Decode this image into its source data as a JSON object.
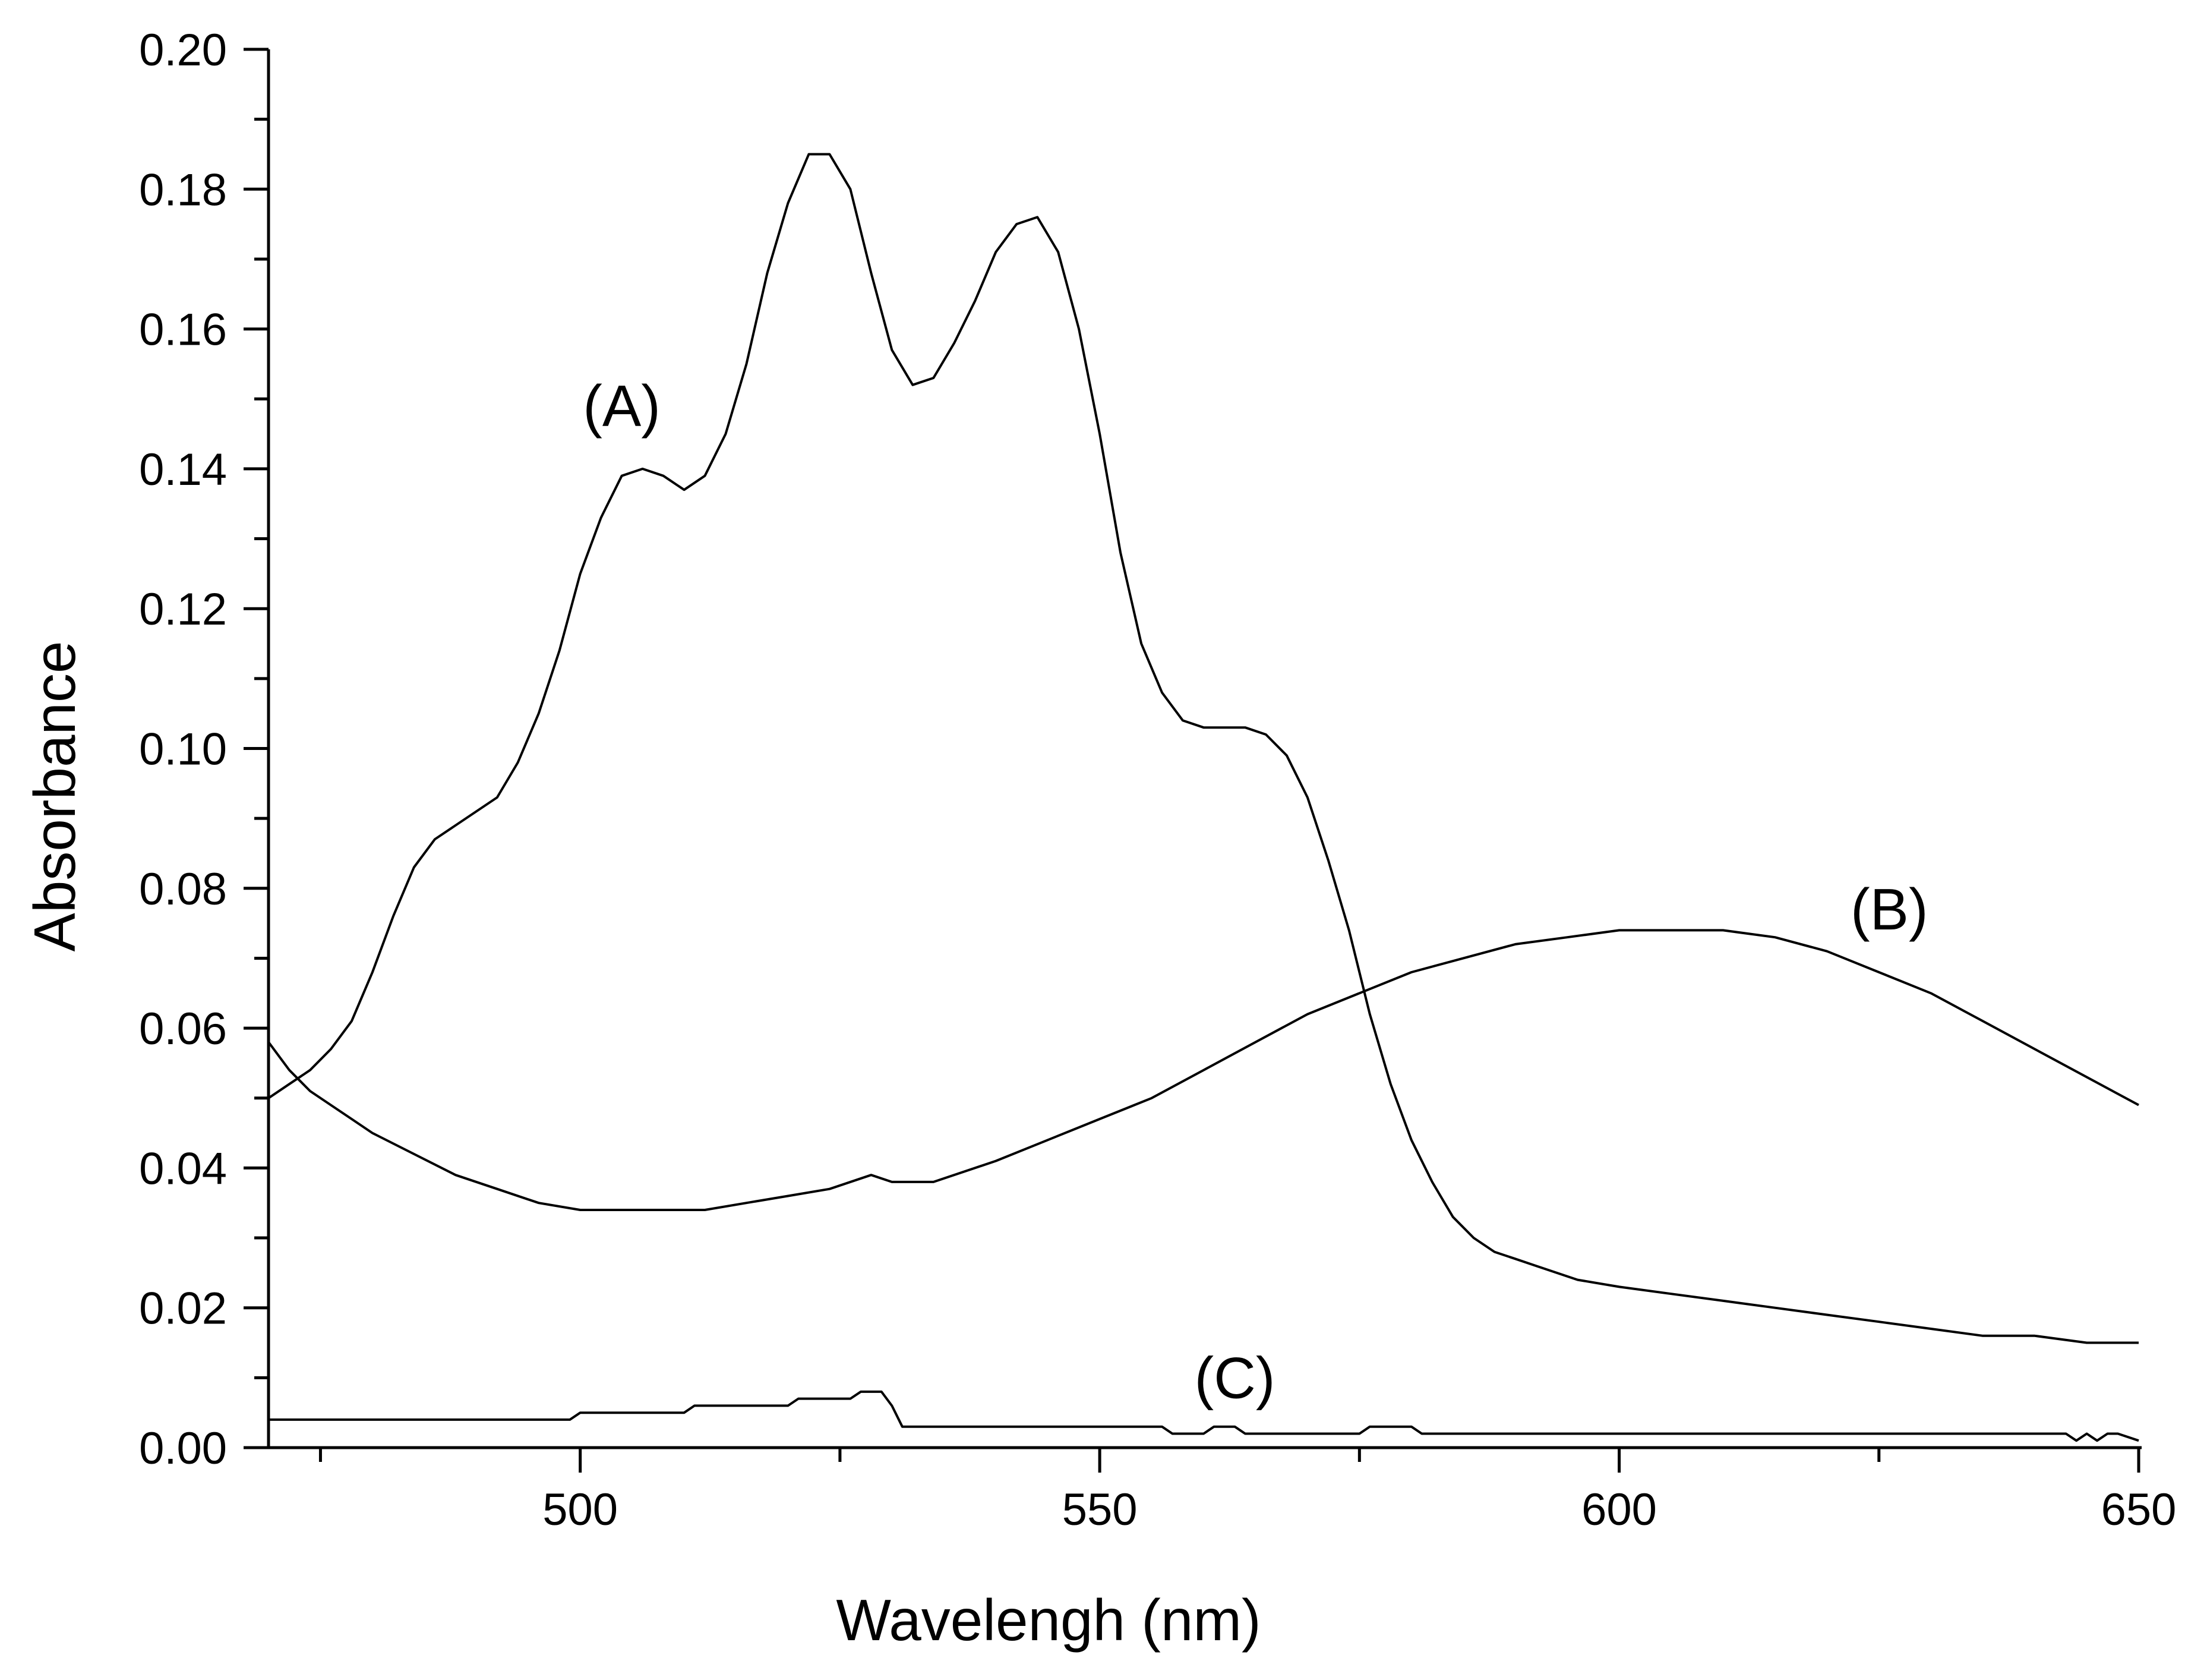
{
  "chart_data": {
    "type": "line",
    "title": "",
    "xlabel": "Wavelengh (nm)",
    "ylabel": "Absorbance",
    "xlim": [
      470,
      650
    ],
    "ylim": [
      0,
      0.2
    ],
    "grid": false,
    "legend": "none",
    "x_ticks": [
      500,
      550,
      600,
      650
    ],
    "x_tick_labels": [
      "500",
      "550",
      "600",
      "650"
    ],
    "x_minor_step": 25,
    "y_ticks": [
      0,
      0.02,
      0.04,
      0.06,
      0.08,
      0.1,
      0.12,
      0.14,
      0.16,
      0.18,
      0.2
    ],
    "y_tick_labels": [
      "0.00",
      "0.02",
      "0.04",
      "0.06",
      "0.08",
      "0.10",
      "0.12",
      "0.14",
      "0.16",
      "0.18",
      "0.20"
    ],
    "y_minor_step": 0.01,
    "series": [
      {
        "name": "(A)",
        "x": [
          470,
          472,
          474,
          476,
          478,
          480,
          482,
          484,
          486,
          488,
          490,
          492,
          494,
          496,
          498,
          500,
          502,
          504,
          506,
          508,
          510,
          512,
          514,
          516,
          518,
          520,
          522,
          524,
          526,
          528,
          530,
          532,
          534,
          536,
          538,
          540,
          542,
          544,
          546,
          548,
          550,
          552,
          554,
          556,
          558,
          560,
          562,
          564,
          566,
          568,
          570,
          572,
          574,
          576,
          578,
          580,
          582,
          584,
          586,
          588,
          590,
          592,
          594,
          596,
          600,
          605,
          610,
          615,
          620,
          625,
          630,
          635,
          640,
          645,
          650
        ],
        "values": [
          0.05,
          0.052,
          0.054,
          0.057,
          0.061,
          0.068,
          0.076,
          0.083,
          0.087,
          0.089,
          0.091,
          0.093,
          0.098,
          0.105,
          0.114,
          0.125,
          0.133,
          0.139,
          0.14,
          0.139,
          0.137,
          0.139,
          0.145,
          0.155,
          0.168,
          0.178,
          0.185,
          0.185,
          0.18,
          0.168,
          0.157,
          0.152,
          0.153,
          0.158,
          0.164,
          0.171,
          0.175,
          0.176,
          0.171,
          0.16,
          0.145,
          0.128,
          0.115,
          0.108,
          0.104,
          0.103,
          0.103,
          0.103,
          0.102,
          0.099,
          0.093,
          0.084,
          0.074,
          0.062,
          0.052,
          0.044,
          0.038,
          0.033,
          0.03,
          0.028,
          0.027,
          0.026,
          0.025,
          0.024,
          0.023,
          0.022,
          0.021,
          0.02,
          0.019,
          0.018,
          0.017,
          0.016,
          0.016,
          0.015,
          0.015
        ]
      },
      {
        "name": "(B)",
        "x": [
          470,
          472,
          474,
          476,
          478,
          480,
          484,
          488,
          492,
          496,
          500,
          504,
          508,
          512,
          516,
          520,
          524,
          528,
          530,
          534,
          540,
          545,
          550,
          555,
          560,
          565,
          570,
          575,
          580,
          585,
          590,
          595,
          600,
          605,
          610,
          615,
          620,
          625,
          630,
          635,
          640,
          645,
          650
        ],
        "values": [
          0.058,
          0.054,
          0.051,
          0.049,
          0.047,
          0.045,
          0.042,
          0.039,
          0.037,
          0.035,
          0.034,
          0.034,
          0.034,
          0.034,
          0.035,
          0.036,
          0.037,
          0.039,
          0.038,
          0.038,
          0.041,
          0.044,
          0.047,
          0.05,
          0.054,
          0.058,
          0.062,
          0.065,
          0.068,
          0.07,
          0.072,
          0.073,
          0.074,
          0.074,
          0.074,
          0.073,
          0.071,
          0.068,
          0.065,
          0.061,
          0.057,
          0.053,
          0.049
        ]
      },
      {
        "name": "(C)",
        "x": [
          470,
          480,
          490,
          499,
          500,
          510,
          511,
          520,
          521,
          526,
          527,
          529,
          530,
          531,
          540,
          550,
          556,
          557,
          560,
          561,
          563,
          564,
          570,
          575,
          576,
          580,
          581,
          590,
          600,
          610,
          620,
          630,
          640,
          643,
          644,
          645,
          646,
          647,
          648,
          650
        ],
        "values": [
          0.004,
          0.004,
          0.004,
          0.004,
          0.005,
          0.005,
          0.006,
          0.006,
          0.007,
          0.007,
          0.008,
          0.008,
          0.006,
          0.003,
          0.003,
          0.003,
          0.003,
          0.002,
          0.002,
          0.003,
          0.003,
          0.002,
          0.002,
          0.002,
          0.003,
          0.003,
          0.002,
          0.002,
          0.002,
          0.002,
          0.002,
          0.002,
          0.002,
          0.002,
          0.001,
          0.002,
          0.001,
          0.002,
          0.002,
          0.001
        ]
      }
    ],
    "annotations": [
      {
        "text": "(A)",
        "x": 504,
        "y": 0.149
      },
      {
        "text": "(B)",
        "x": 626,
        "y": 0.077
      },
      {
        "text": "(C)",
        "x": 563,
        "y": 0.01
      }
    ]
  }
}
